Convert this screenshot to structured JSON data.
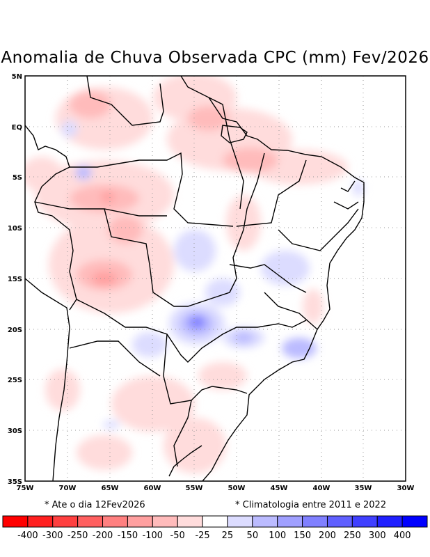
{
  "title": "Anomalia de Chuva Observada CPC (mm) Fev/2026",
  "map": {
    "lat_labels": [
      "5N",
      "EQ",
      "5S",
      "10S",
      "15S",
      "20S",
      "25S",
      "30S",
      "35S"
    ],
    "lon_labels": [
      "75W",
      "70W",
      "65W",
      "60W",
      "55W",
      "50W",
      "45W",
      "40W",
      "35W",
      "30W"
    ]
  },
  "notes": {
    "date": "* Ate o dia 12Fev2026",
    "climatology": "* Climatologia entre 2011 e 2022"
  },
  "colorbar": {
    "colors": [
      "#ff0000",
      "#ff2020",
      "#ff4040",
      "#ff6060",
      "#ff8080",
      "#ffa0a0",
      "#ffbbbb",
      "#ffdcdc",
      "#ffffff",
      "#dcdcff",
      "#bbbbff",
      "#a0a0ff",
      "#8080ff",
      "#6060ff",
      "#4040ff",
      "#2020ff",
      "#0000ff"
    ],
    "labels": [
      "-400",
      "-300",
      "-250",
      "-200",
      "-150",
      "-100",
      "-50",
      "-25",
      "25",
      "50",
      "100",
      "150",
      "200",
      "250",
      "300",
      "400"
    ]
  }
}
